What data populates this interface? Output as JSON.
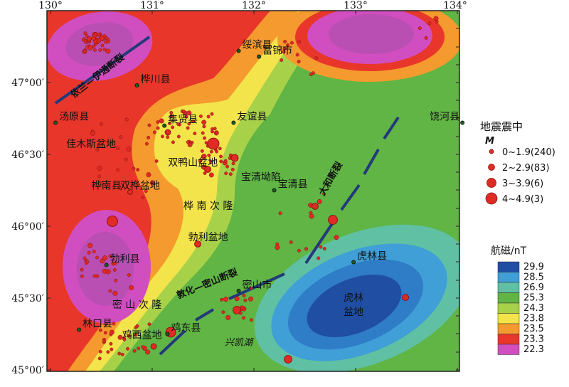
{
  "legend": {
    "title": "地震震中",
    "symbol": "M",
    "items": [
      {
        "label": "0~1.9(240)",
        "r": 3
      },
      {
        "label": "2~2.9(83)",
        "r": 4.5
      },
      {
        "label": "3~3.9(6)",
        "r": 6.5
      },
      {
        "label": "4~4.9(3)",
        "r": 8
      }
    ]
  },
  "colorbar": {
    "title": "航磁/nT",
    "stops": [
      {
        "label": "29.9",
        "color": "#1f4ea3"
      },
      {
        "label": "28.5",
        "color": "#3f9fd6"
      },
      {
        "label": "26.9",
        "color": "#5fc0a4"
      },
      {
        "label": "25.3",
        "color": "#60b544"
      },
      {
        "label": "24.3",
        "color": "#a8d14a"
      },
      {
        "label": "23.8",
        "color": "#f3e44c"
      },
      {
        "label": "23.5",
        "color": "#f59a2e"
      },
      {
        "label": "23.3",
        "color": "#e8362b"
      },
      {
        "label": "22.3",
        "color": "#d14ec0"
      }
    ]
  },
  "axes": {
    "lon_ticks": [
      "130°",
      "131°",
      "132°",
      "133°",
      "134°"
    ],
    "lat_ticks": [
      "47°00′",
      "46°30′",
      "46°00′",
      "45°30′",
      "45°00′"
    ]
  },
  "places": [
    {
      "name": "绥滨县",
      "lon": 131.85,
      "lat": 47.22
    },
    {
      "name": "富锦市",
      "lon": 132.05,
      "lat": 47.18
    },
    {
      "name": "桦川县",
      "lon": 130.85,
      "lat": 46.98
    },
    {
      "name": "汤原县",
      "lon": 130.05,
      "lat": 46.72
    },
    {
      "name": "集贤县",
      "lon": 131.12,
      "lat": 46.7
    },
    {
      "name": "友谊县",
      "lon": 131.8,
      "lat": 46.72
    },
    {
      "name": "饶河县",
      "lon": 134.05,
      "lat": 46.72
    },
    {
      "name": "宝清县",
      "lon": 132.2,
      "lat": 46.25
    },
    {
      "name": "勃利县",
      "lon": 130.55,
      "lat": 45.73
    },
    {
      "name": "虎林县",
      "lon": 132.98,
      "lat": 45.75
    },
    {
      "name": "密山市",
      "lon": 131.85,
      "lat": 45.55
    },
    {
      "name": "林口县",
      "lon": 130.28,
      "lat": 45.28
    },
    {
      "name": "鸡东县",
      "lon": 131.15,
      "lat": 45.25
    }
  ],
  "regions": [
    {
      "name": "佳木斯盆地",
      "lon": 130.4,
      "lat": 46.55
    },
    {
      "name": "双鸭山盆地",
      "lon": 131.4,
      "lat": 46.42
    },
    {
      "name": "宝清坳陷",
      "lon": 132.07,
      "lat": 46.32
    },
    {
      "name": "桦南县",
      "lon": 130.55,
      "lat": 46.26
    },
    {
      "name": "双桦盆地",
      "lon": 130.88,
      "lat": 46.26
    },
    {
      "name": "桦 南 次 隆",
      "lon": 131.55,
      "lat": 46.12
    },
    {
      "name": "勃利盆地",
      "lon": 131.55,
      "lat": 45.9
    },
    {
      "name": "密 山 次 隆",
      "lon": 130.85,
      "lat": 45.43
    },
    {
      "name": "鸡西盆地",
      "lon": 130.9,
      "lat": 45.22
    },
    {
      "name": "虎林",
      "lon": 132.98,
      "lat": 45.48
    },
    {
      "name": "盆地",
      "lon": 132.98,
      "lat": 45.38
    }
  ],
  "faults": [
    {
      "name": "依兰—伊通断裂",
      "lon": 130.48,
      "lat": 47.03,
      "angle": -38
    },
    {
      "name": "敦化—密山断裂",
      "lon": 131.55,
      "lat": 45.58,
      "angle": -22
    },
    {
      "name": "大和断裂",
      "lon": 132.78,
      "lat": 46.32,
      "angle": -60
    }
  ],
  "lake": {
    "name": "兴凯湖",
    "lon": 131.85,
    "lat": 45.17
  }
}
